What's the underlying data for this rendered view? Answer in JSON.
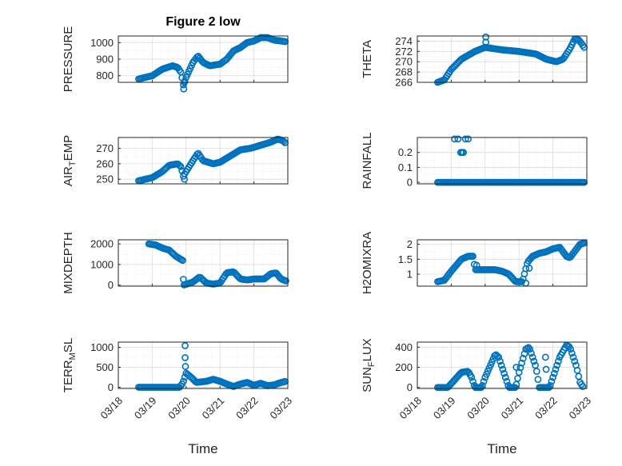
{
  "colors": {
    "series": "#0072BD",
    "axis": "#262626"
  },
  "chart_data": [
    {
      "type": "scatter",
      "title": "Figure 2 low",
      "ylabel": "PRESSURE",
      "xlabel": "",
      "grid": true,
      "xlim": [
        0,
        5
      ],
      "ylim": [
        760,
        1040
      ],
      "yticks": [
        800,
        900,
        1000
      ],
      "ytick_labels": [
        "800",
        "900",
        "1000"
      ],
      "x_tick_labels": [],
      "y_keypoints": [
        [
          0.6,
          780
        ],
        [
          1.0,
          800
        ],
        [
          1.3,
          840
        ],
        [
          1.6,
          860
        ],
        [
          1.75,
          850
        ],
        [
          1.85,
          820
        ],
        [
          1.92,
          745
        ],
        [
          2.0,
          790
        ],
        [
          2.2,
          880
        ],
        [
          2.35,
          920
        ],
        [
          2.5,
          880
        ],
        [
          2.7,
          860
        ],
        [
          3.0,
          870
        ],
        [
          3.2,
          900
        ],
        [
          3.4,
          950
        ],
        [
          3.6,
          970
        ],
        [
          3.8,
          1000
        ],
        [
          4.0,
          1010
        ],
        [
          4.2,
          1030
        ],
        [
          4.4,
          1030
        ],
        [
          4.6,
          1015
        ],
        [
          4.8,
          1010
        ],
        [
          4.95,
          1005
        ]
      ],
      "outliers": [
        [
          1.93,
          720
        ],
        [
          1.95,
          760
        ]
      ]
    },
    {
      "type": "scatter",
      "title": "",
      "ylabel": "THETA",
      "xlabel": "",
      "grid": true,
      "xlim": [
        0,
        5
      ],
      "ylim": [
        266,
        275
      ],
      "yticks": [
        266,
        268,
        270,
        272,
        274
      ],
      "ytick_labels": [
        "266",
        "268",
        "270",
        "272",
        "274"
      ],
      "x_tick_labels": [],
      "y_keypoints": [
        [
          0.6,
          266
        ],
        [
          0.8,
          266.5
        ],
        [
          1.0,
          268.5
        ],
        [
          1.3,
          270.5
        ],
        [
          1.7,
          272
        ],
        [
          2.0,
          272.8
        ],
        [
          2.5,
          272.3
        ],
        [
          3.0,
          272
        ],
        [
          3.5,
          271.5
        ],
        [
          3.8,
          270.5
        ],
        [
          4.1,
          270
        ],
        [
          4.3,
          270.5
        ],
        [
          4.5,
          272.5
        ],
        [
          4.65,
          274.5
        ],
        [
          4.75,
          274.3
        ],
        [
          4.85,
          273.5
        ],
        [
          4.95,
          272.5
        ]
      ],
      "outliers": [
        [
          2.02,
          274.8
        ],
        [
          2.02,
          273.8
        ]
      ]
    },
    {
      "type": "scatter",
      "title": "",
      "ylabel": "AIR_TEMP",
      "xlabel": "",
      "grid": true,
      "xlim": [
        0,
        5
      ],
      "ylim": [
        247,
        277
      ],
      "yticks": [
        250,
        260,
        270
      ],
      "ytick_labels": [
        "250",
        "260",
        "270"
      ],
      "x_tick_labels": [],
      "y_keypoints": [
        [
          0.6,
          249
        ],
        [
          1.0,
          251
        ],
        [
          1.3,
          255
        ],
        [
          1.5,
          259
        ],
        [
          1.75,
          260
        ],
        [
          1.85,
          258
        ],
        [
          1.92,
          252
        ],
        [
          2.0,
          255
        ],
        [
          2.2,
          262
        ],
        [
          2.35,
          267
        ],
        [
          2.5,
          262
        ],
        [
          2.8,
          260
        ],
        [
          3.0,
          261
        ],
        [
          3.3,
          265
        ],
        [
          3.6,
          269
        ],
        [
          3.9,
          270
        ],
        [
          4.2,
          272
        ],
        [
          4.5,
          274
        ],
        [
          4.7,
          276
        ],
        [
          4.85,
          275
        ],
        [
          4.95,
          273
        ]
      ],
      "outliers": [
        [
          1.95,
          250
        ]
      ]
    },
    {
      "type": "scatter",
      "title": "",
      "ylabel": "RAINFALL",
      "xlabel": "",
      "grid": true,
      "xlim": [
        0,
        5
      ],
      "ylim": [
        -0.01,
        0.3
      ],
      "yticks": [
        0,
        0.1,
        0.2
      ],
      "ytick_labels": [
        "0",
        "0.1",
        "0.2"
      ],
      "x_tick_labels": [],
      "y_keypoints": [
        [
          0.6,
          0
        ],
        [
          4.95,
          0
        ]
      ],
      "outliers": [
        [
          1.1,
          0.29
        ],
        [
          1.2,
          0.29
        ],
        [
          1.28,
          0.2
        ],
        [
          1.32,
          0.2
        ],
        [
          1.36,
          0.2
        ],
        [
          1.42,
          0.29
        ],
        [
          1.5,
          0.29
        ]
      ]
    },
    {
      "type": "scatter",
      "title": "",
      "ylabel": "MIXDEPTH",
      "xlabel": "",
      "grid": true,
      "xlim": [
        0,
        5
      ],
      "ylim": [
        -50,
        2200
      ],
      "yticks": [
        0,
        1000,
        2000
      ],
      "ytick_labels": [
        "0",
        "1000",
        "2000"
      ],
      "x_tick_labels": [],
      "y_keypoints": [
        [
          0.9,
          2000
        ],
        [
          1.1,
          1950
        ],
        [
          1.3,
          1800
        ],
        [
          1.5,
          1700
        ],
        [
          1.7,
          1400
        ],
        [
          1.85,
          1250
        ],
        [
          1.9,
          1200
        ],
        [
          1.92,
          0
        ],
        [
          2.2,
          150
        ],
        [
          2.4,
          400
        ],
        [
          2.6,
          100
        ],
        [
          2.8,
          50
        ],
        [
          3.0,
          100
        ],
        [
          3.2,
          600
        ],
        [
          3.4,
          650
        ],
        [
          3.6,
          300
        ],
        [
          3.8,
          250
        ],
        [
          4.0,
          300
        ],
        [
          4.3,
          300
        ],
        [
          4.5,
          550
        ],
        [
          4.65,
          600
        ],
        [
          4.8,
          300
        ],
        [
          4.95,
          200
        ]
      ],
      "outliers": [
        [
          1.92,
          280
        ]
      ]
    },
    {
      "type": "scatter",
      "title": "",
      "ylabel": "H2OMIXRA",
      "xlabel": "",
      "grid": true,
      "xlim": [
        0,
        5
      ],
      "ylim": [
        0.6,
        2.15
      ],
      "yticks": [
        1,
        1.5,
        2
      ],
      "ytick_labels": [
        "1",
        "1.5",
        "2"
      ],
      "x_tick_labels": [],
      "y_keypoints": [
        [
          0.6,
          0.75
        ],
        [
          0.8,
          0.8
        ],
        [
          1.0,
          1.1
        ],
        [
          1.3,
          1.5
        ],
        [
          1.5,
          1.6
        ],
        [
          1.65,
          1.6
        ],
        [
          1.7,
          1.15
        ],
        [
          2.0,
          1.15
        ],
        [
          2.3,
          1.15
        ],
        [
          2.5,
          1.1
        ],
        [
          2.7,
          1.0
        ],
        [
          2.9,
          0.75
        ],
        [
          3.1,
          0.75
        ],
        [
          3.25,
          1.4
        ],
        [
          3.4,
          1.6
        ],
        [
          3.6,
          1.7
        ],
        [
          3.8,
          1.75
        ],
        [
          4.0,
          1.85
        ],
        [
          4.2,
          1.9
        ],
        [
          4.4,
          1.6
        ],
        [
          4.5,
          1.55
        ],
        [
          4.6,
          1.7
        ],
        [
          4.8,
          2.0
        ],
        [
          4.95,
          2.05
        ]
      ],
      "outliers": [
        [
          1.75,
          1.3
        ],
        [
          3.2,
          0.7
        ],
        [
          3.3,
          1.2
        ]
      ]
    },
    {
      "type": "scatter",
      "title": "",
      "ylabel": "TERR_MSL",
      "xlabel": "Time",
      "grid": true,
      "xlim": [
        0,
        5
      ],
      "ylim": [
        -30,
        1130
      ],
      "yticks": [
        0,
        500,
        1000
      ],
      "ytick_labels": [
        "0",
        "500",
        "1000"
      ],
      "x_tick_labels": [
        "03/18",
        "03/19",
        "03/20",
        "03/21",
        "03/22",
        "03/23"
      ],
      "y_keypoints": [
        [
          0.6,
          0
        ],
        [
          1.7,
          0
        ],
        [
          1.8,
          0
        ],
        [
          1.9,
          100
        ],
        [
          2.0,
          350
        ],
        [
          2.15,
          250
        ],
        [
          2.3,
          120
        ],
        [
          2.6,
          150
        ],
        [
          2.8,
          200
        ],
        [
          3.0,
          150
        ],
        [
          3.2,
          80
        ],
        [
          3.4,
          20
        ],
        [
          3.6,
          80
        ],
        [
          3.8,
          120
        ],
        [
          4.0,
          50
        ],
        [
          4.2,
          100
        ],
        [
          4.4,
          40
        ],
        [
          4.6,
          60
        ],
        [
          4.8,
          120
        ],
        [
          4.95,
          150
        ]
      ],
      "outliers": [
        [
          1.97,
          1040
        ],
        [
          1.97,
          740
        ],
        [
          1.98,
          520
        ]
      ]
    },
    {
      "type": "scatter",
      "title": "",
      "ylabel": "SUN_FLUX",
      "xlabel": "Time",
      "grid": true,
      "xlim": [
        0,
        5
      ],
      "ylim": [
        -10,
        450
      ],
      "yticks": [
        0,
        200,
        400
      ],
      "ytick_labels": [
        "0",
        "200",
        "400"
      ],
      "x_tick_labels": [
        "03/18",
        "03/19",
        "03/20",
        "03/21",
        "03/22",
        "03/23"
      ],
      "y_keypoints": [
        [
          0.6,
          0
        ],
        [
          0.9,
          0
        ],
        [
          1.3,
          150
        ],
        [
          1.5,
          160
        ],
        [
          1.6,
          100
        ],
        [
          1.7,
          0
        ],
        [
          1.9,
          0
        ],
        [
          2.0,
          100
        ],
        [
          2.3,
          330
        ],
        [
          2.4,
          300
        ],
        [
          2.6,
          100
        ],
        [
          2.7,
          0
        ],
        [
          2.9,
          0
        ],
        [
          3.0,
          150
        ],
        [
          3.2,
          380
        ],
        [
          3.3,
          400
        ],
        [
          3.5,
          200
        ],
        [
          3.6,
          0
        ],
        [
          3.9,
          0
        ],
        [
          4.2,
          300
        ],
        [
          4.4,
          420
        ],
        [
          4.5,
          400
        ],
        [
          4.7,
          200
        ],
        [
          4.8,
          50
        ],
        [
          4.9,
          0
        ]
      ],
      "outliers": [
        [
          2.92,
          200
        ],
        [
          3.78,
          300
        ],
        [
          3.8,
          180
        ]
      ]
    }
  ]
}
